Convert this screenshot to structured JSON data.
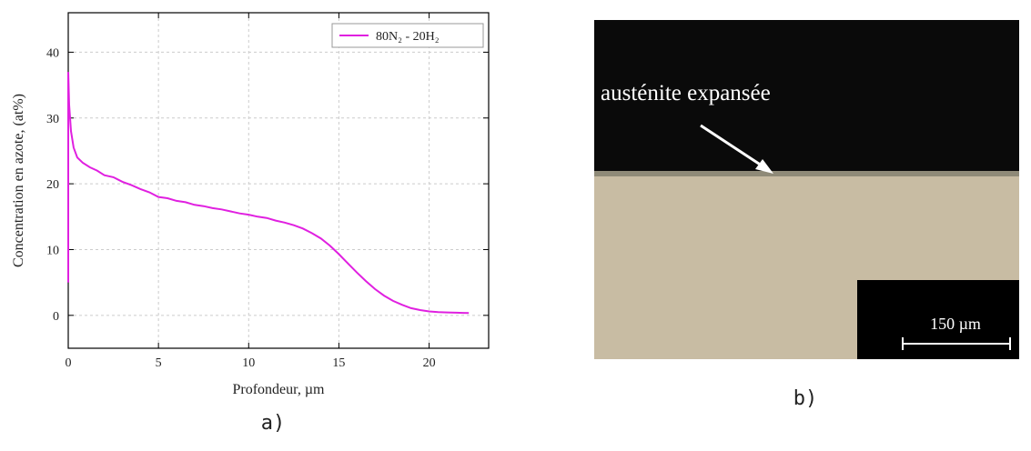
{
  "chart_data": {
    "type": "line",
    "xlabel": "Profondeur, µm",
    "ylabel": "Concentration en azote, (at%)",
    "xlim": [
      0,
      23.3
    ],
    "ylim": [
      -5,
      46
    ],
    "xticks": [
      0,
      5,
      10,
      15,
      20
    ],
    "yticks": [
      0,
      10,
      20,
      30,
      40
    ],
    "grid": true,
    "legend": "upper right",
    "series": [
      {
        "name": "80N₂ - 20H₂",
        "color": "#e020e0",
        "x": [
          0,
          0,
          0.05,
          0.15,
          0.3,
          0.5,
          0.8,
          1.2,
          1.6,
          2,
          2.5,
          3,
          3.5,
          4,
          4.5,
          5,
          5.5,
          6,
          6.5,
          7,
          7.5,
          8,
          8.5,
          9,
          9.5,
          10,
          10.5,
          11,
          11.5,
          12,
          12.5,
          13,
          13.5,
          14,
          14.5,
          15,
          15.5,
          16,
          16.5,
          17,
          17.5,
          18,
          18.5,
          19,
          19.5,
          20,
          20.5,
          21,
          21.5,
          22.2
        ],
        "values": [
          5,
          37,
          32,
          28,
          25.5,
          24,
          23.2,
          22.5,
          22,
          21.3,
          21,
          20.3,
          19.8,
          19.2,
          18.7,
          18,
          17.8,
          17.4,
          17.2,
          16.8,
          16.6,
          16.3,
          16.1,
          15.8,
          15.5,
          15.3,
          15,
          14.8,
          14.4,
          14.1,
          13.7,
          13.2,
          12.5,
          11.7,
          10.6,
          9.3,
          7.9,
          6.5,
          5.2,
          4,
          3,
          2.2,
          1.6,
          1.1,
          0.8,
          0.6,
          0.5,
          0.45,
          0.4,
          0.35
        ]
      }
    ]
  },
  "image": {
    "annotation": "austénite expansée",
    "scale_bar": "150 µm"
  },
  "captions": [
    "a)",
    "b)"
  ]
}
